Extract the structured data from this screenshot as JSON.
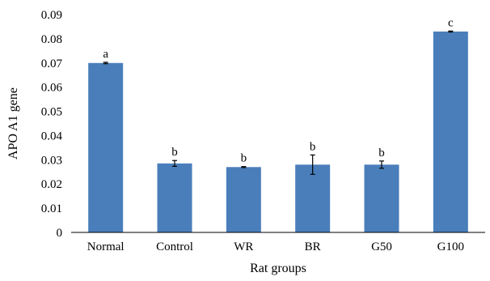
{
  "chart_data": {
    "type": "bar",
    "title": "",
    "xlabel": "Rat groups",
    "ylabel": "APO A1 gene",
    "categories": [
      "Normal",
      "Control",
      "WR",
      "BR",
      "G50",
      "G100"
    ],
    "values": [
      0.07,
      0.0285,
      0.027,
      0.028,
      0.028,
      0.083
    ],
    "errors": [
      0.0003,
      0.0012,
      0.0002,
      0.004,
      0.0015,
      0.0002
    ],
    "annotations": [
      "a",
      "b",
      "b",
      "b",
      "b",
      "c"
    ],
    "ylim": [
      0,
      0.09
    ],
    "yticks": [
      0,
      0.01,
      0.02,
      0.03,
      0.04,
      0.05,
      0.06,
      0.07,
      0.08,
      0.09
    ],
    "ytick_labels": [
      "0",
      "0.01",
      "0.02",
      "0.03",
      "0.04",
      "0.05",
      "0.06",
      "0.07",
      "0.08",
      "0.09"
    ],
    "grid": false,
    "legend": "none",
    "bar_color": "#4a7ebb"
  }
}
